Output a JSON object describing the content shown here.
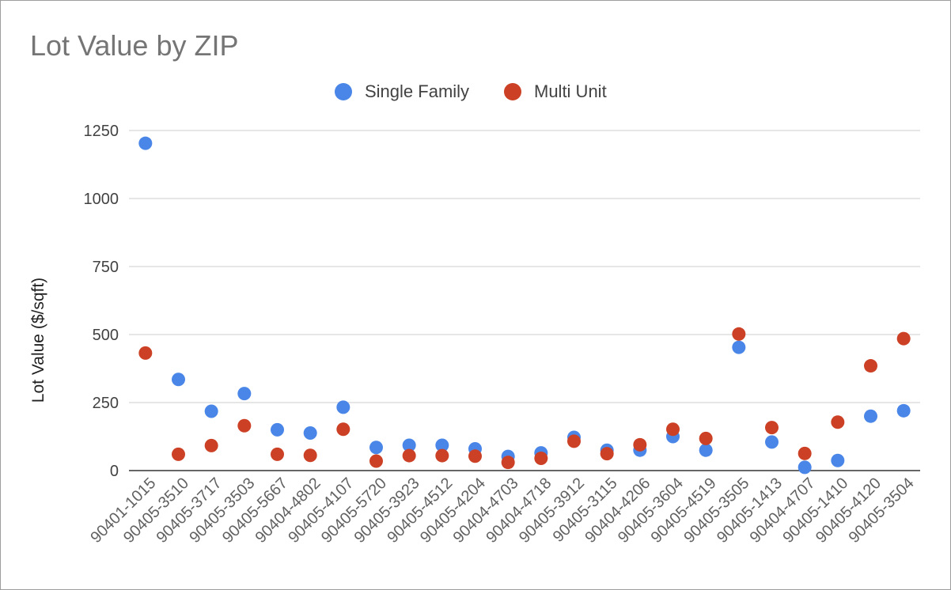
{
  "chart_data": {
    "type": "scatter",
    "title": "Lot Value by ZIP",
    "xlabel": "",
    "ylabel": "Lot Value ($/sqft)",
    "ylim": [
      0,
      1250
    ],
    "yticks": [
      0,
      250,
      500,
      750,
      1000,
      1250
    ],
    "grid": true,
    "legend_position": "top",
    "categories": [
      "90401-1015",
      "90405-3510",
      "90405-3717",
      "90405-3503",
      "90405-5667",
      "90404-4802",
      "90405-4107",
      "90405-5720",
      "90405-3923",
      "90405-4512",
      "90405-4204",
      "90404-4703",
      "90404-4718",
      "90405-3912",
      "90405-3115",
      "90404-4206",
      "90405-3604",
      "90405-4519",
      "90405-3505",
      "90405-1413",
      "90404-4707",
      "90405-1410",
      "90405-4120",
      "90405-3504"
    ],
    "series": [
      {
        "name": "Single Family",
        "color": "#4a86e8",
        "values": [
          1203,
          335,
          218,
          283,
          150,
          138,
          233,
          85,
          93,
          93,
          80,
          52,
          65,
          122,
          75,
          75,
          125,
          75,
          453,
          105,
          12,
          37,
          200,
          220
        ]
      },
      {
        "name": "Multi Unit",
        "color": "#cc4125",
        "values": [
          432,
          60,
          92,
          165,
          60,
          56,
          152,
          35,
          55,
          55,
          53,
          30,
          45,
          108,
          62,
          95,
          152,
          118,
          502,
          158,
          63,
          178,
          385,
          485
        ]
      }
    ]
  }
}
